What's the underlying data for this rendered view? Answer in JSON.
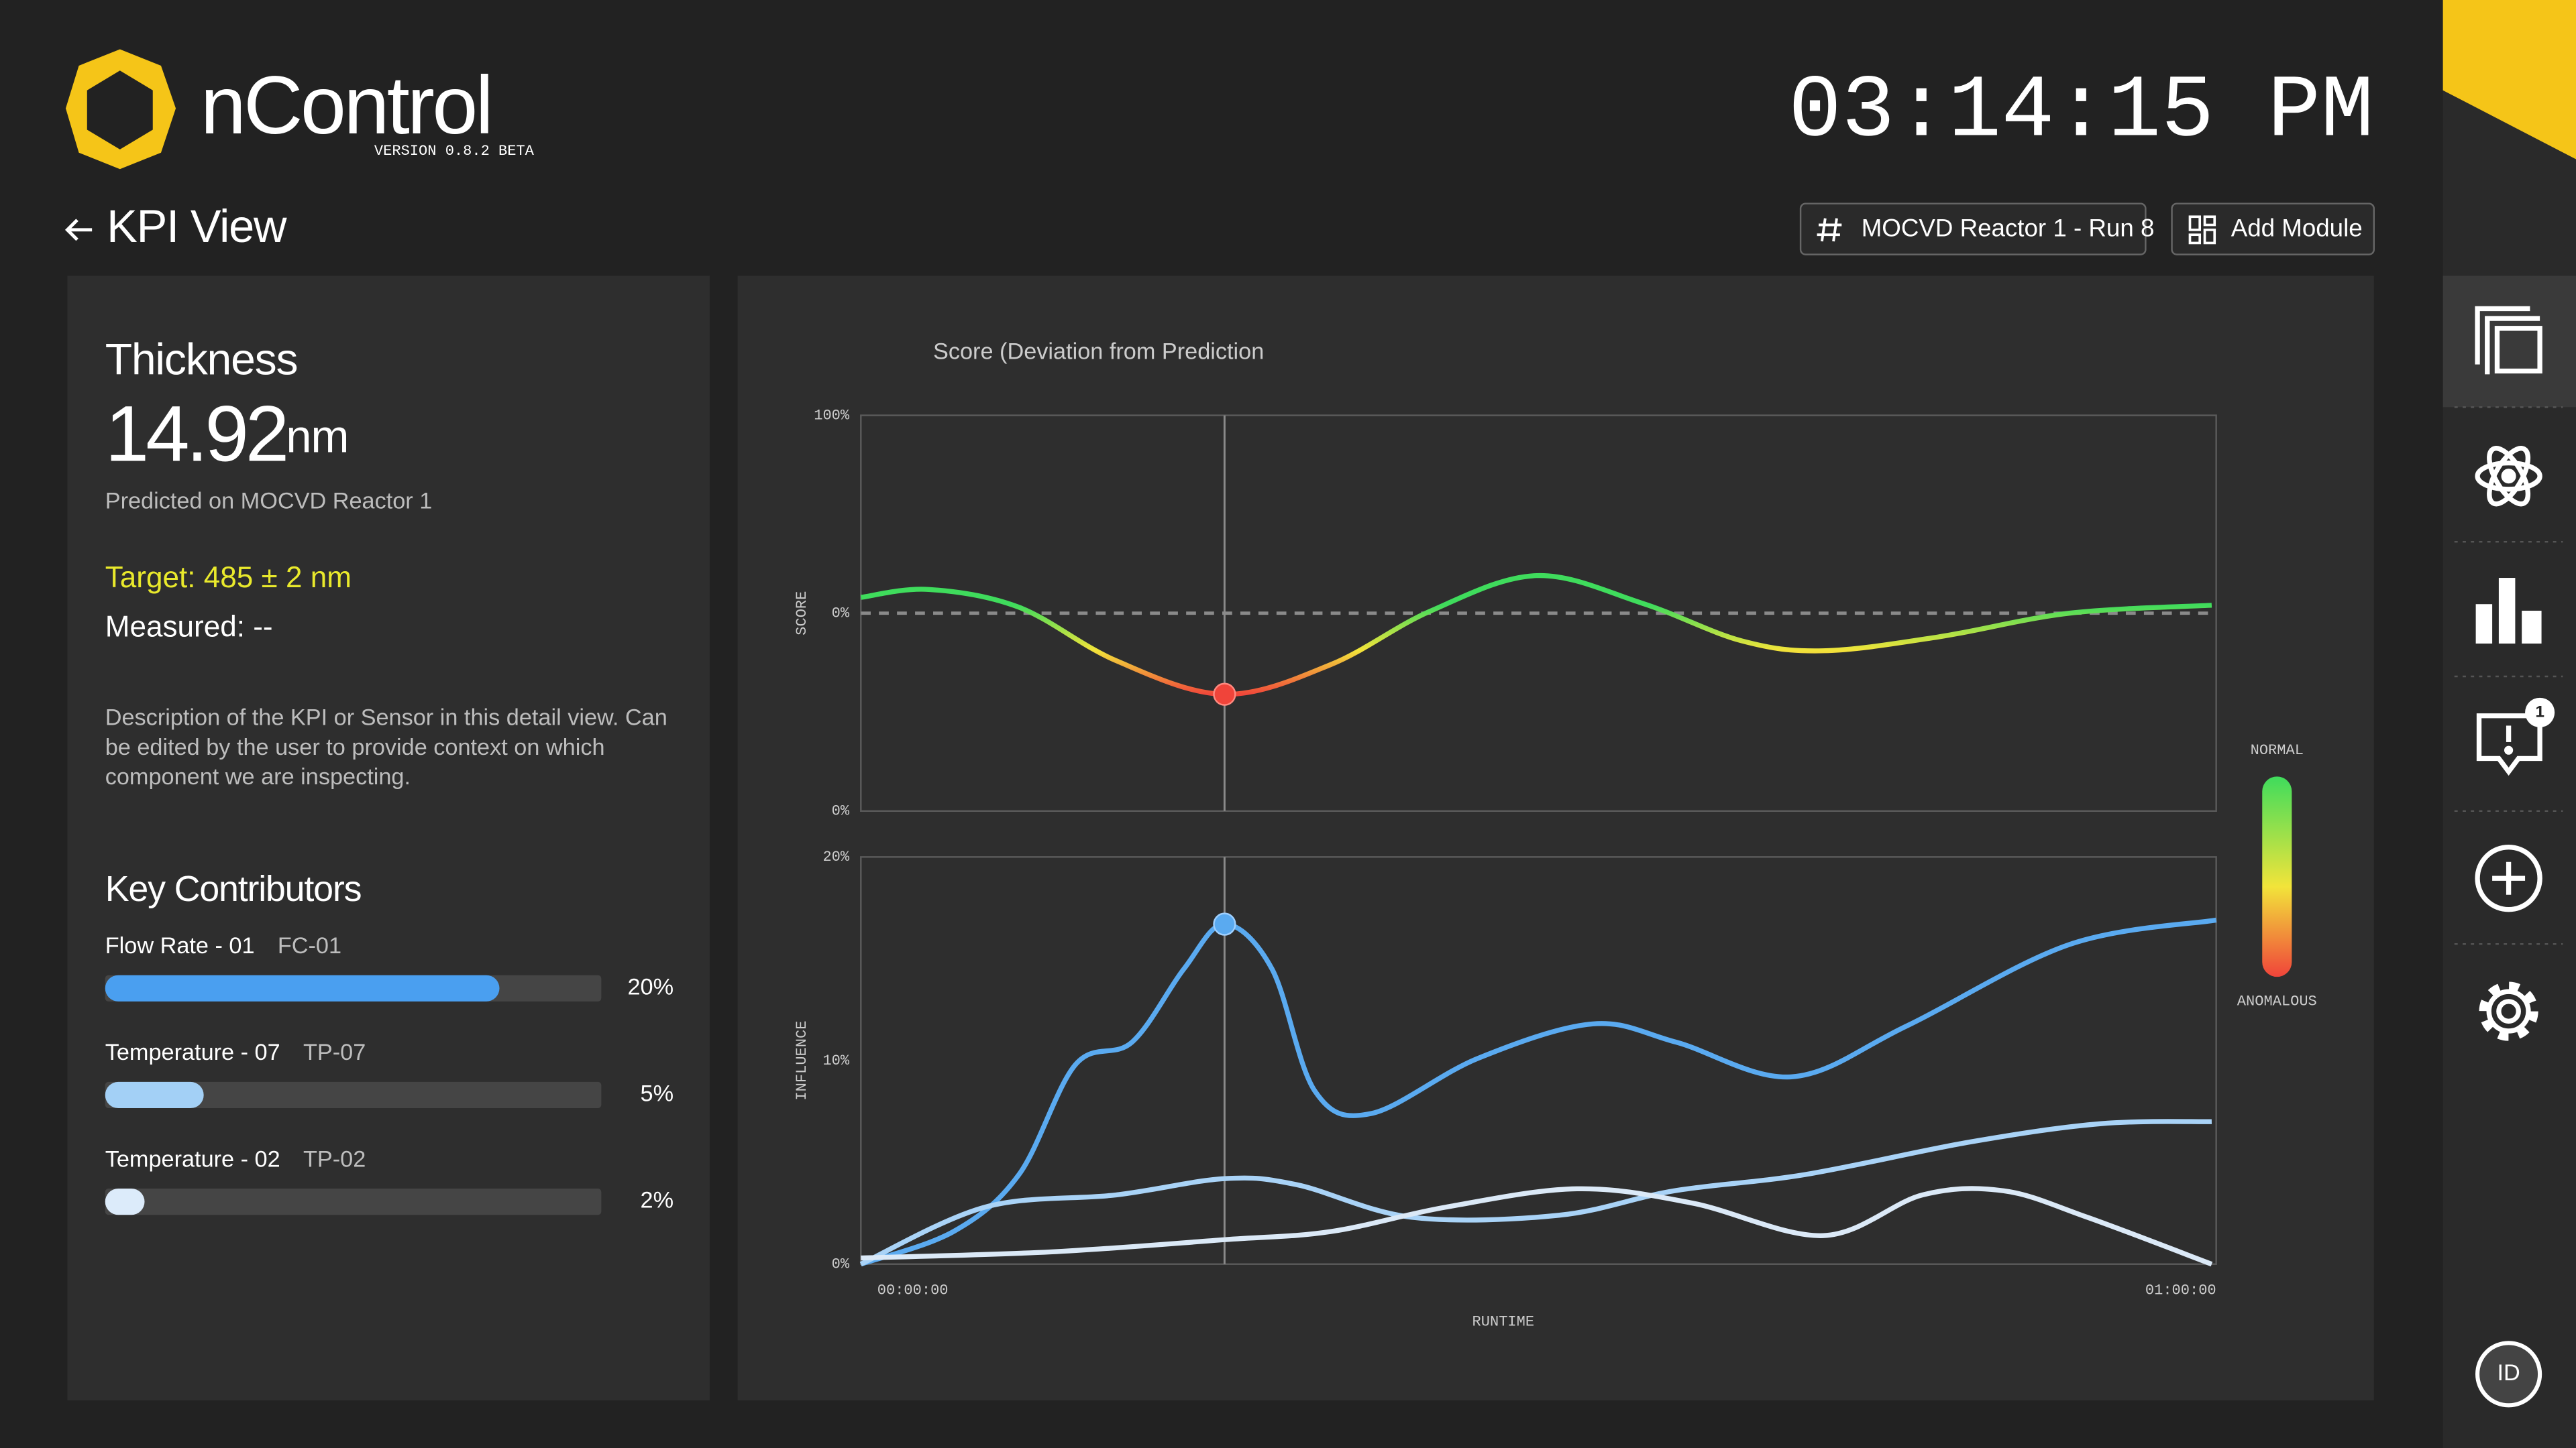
{
  "header": {
    "app_name": "nControl",
    "version": "VERSION 0.8.2 BETA",
    "clock": "03:14:15 PM",
    "view_title": "KPI View",
    "buttons": [
      "MOCVD Reactor 1 - Run 8",
      "Add Module"
    ]
  },
  "sidebar": {
    "notification_count": 1,
    "user": "ID"
  },
  "kpi": {
    "title": "Thickness",
    "value": 14.92,
    "unit": "nm",
    "predicted_on": "Predicted on MOCVD Reactor 1",
    "target": "Target: 485 ±  2 nm",
    "measured": "Measured: --",
    "description": [
      "Description of the KPI or Sensor in this detail view. Can",
      "be edited by the user to provide context on which",
      "component we are inspecting."
    ],
    "contributors": {
      "title": "Key Contributors",
      "xlim": [
        0,
        25
      ],
      "items": [
        {
          "name": "Flow Rate - 01",
          "code": "FC-01",
          "value": 20,
          "value_label": "20%",
          "color": "#4a9ff0"
        },
        {
          "name": "Temperature - 07",
          "code": "TP-07",
          "value": 5,
          "value_label": "5%",
          "color": "#a3d0f6"
        },
        {
          "name": "Temperature - 02",
          "code": "TP-02",
          "value": 2,
          "value_label": "2%",
          "color": "#dcebfa"
        }
      ]
    }
  },
  "charts": {
    "legend": "Score (Deviation from Prediction",
    "x_label": "RUNTIME",
    "xlim": [
      0,
      60
    ],
    "xticks": [
      {
        "value": 0,
        "label": "00:00:00"
      },
      {
        "value": 60,
        "label": "01:00:00"
      }
    ],
    "cursor_x": 16.1,
    "scale": {
      "top_label": "NORMAL",
      "bottom_label": "ANOMALOUS",
      "colors": [
        "#3fdc5c",
        "#f2e43a",
        "#f0443a"
      ]
    },
    "score": {
      "y_label": "SCORE",
      "ylim": [
        -100,
        100
      ],
      "ytick_labels": [
        "100%",
        "0%",
        "0%"
      ],
      "x": [
        0,
        3,
        7,
        11.3,
        16.1,
        20.8,
        25.2,
        29.9,
        34.6,
        39,
        42.6,
        47.7,
        53.5,
        59.8
      ],
      "values": [
        8,
        12,
        3,
        -24,
        -41,
        -26,
        1,
        19,
        5,
        -14,
        -19,
        -12,
        0,
        4
      ]
    },
    "influence": {
      "y_label": "INFLUENCE",
      "ylim": [
        0,
        20
      ],
      "yticks": [
        {
          "value": 20,
          "label": "20%"
        },
        {
          "value": 10,
          "label": "10%"
        },
        {
          "value": 0,
          "label": "0%"
        }
      ],
      "series": [
        {
          "color": "#5aaaf0",
          "x": [
            0,
            4.1,
            7,
            9.5,
            12,
            14.3,
            16.1,
            18.2,
            20.1,
            22.6,
            27.3,
            32.4,
            36.1,
            41.2,
            46.3,
            53.5,
            60
          ],
          "values": [
            0,
            1.6,
            4.4,
            9.8,
            10.9,
            14.5,
            16.7,
            14.5,
            8.5,
            7.4,
            10.1,
            11.8,
            10.9,
            9.2,
            11.7,
            15.7,
            16.9
          ]
        },
        {
          "color": "#a9d3f7",
          "x": [
            0,
            5.5,
            11.3,
            16.1,
            19.3,
            24.4,
            30.9,
            36,
            41.8,
            49.1,
            54.9,
            59.8
          ],
          "values": [
            0,
            2.8,
            3.4,
            4.2,
            3.9,
            2.3,
            2.4,
            3.6,
            4.4,
            6.0,
            6.9,
            7.0
          ]
        },
        {
          "color": "#dbe9f7",
          "x": [
            0,
            8.4,
            16.1,
            20.8,
            25.9,
            31.7,
            36.8,
            42.6,
            47,
            50.6,
            54.3,
            59.8
          ],
          "values": [
            0.3,
            0.6,
            1.2,
            1.6,
            2.8,
            3.7,
            3.0,
            1.4,
            3.4,
            3.6,
            2.3,
            0
          ]
        }
      ]
    }
  }
}
